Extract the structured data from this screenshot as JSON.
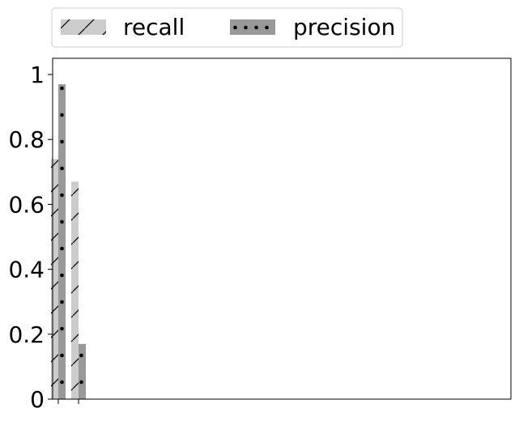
{
  "chart_data": {
    "type": "bar",
    "categories": [
      "",
      ""
    ],
    "series": [
      {
        "name": "recall",
        "values": [
          0.74,
          0.67
        ],
        "color": "#cccccc",
        "hatch": "diagonal"
      },
      {
        "name": "precision",
        "values": [
          0.97,
          0.17
        ],
        "color": "#999999",
        "hatch": "dots"
      }
    ],
    "title": "",
    "xlabel": "",
    "ylabel": "",
    "ylim": [
      0,
      1.05
    ],
    "yticks": [
      0,
      0.2,
      0.4,
      0.6,
      0.8,
      1
    ],
    "ytick_labels": [
      "0",
      "0.2",
      "0.4",
      "0.6",
      "0.8",
      "1"
    ],
    "grid": false,
    "legend": {
      "placement": "top-left-outside",
      "columns": 2
    }
  }
}
